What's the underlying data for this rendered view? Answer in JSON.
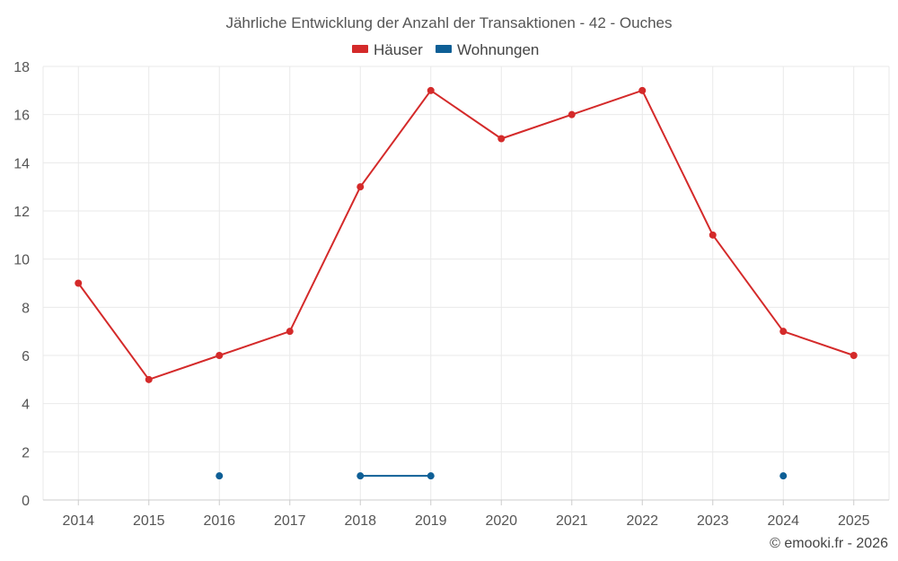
{
  "chart_data": {
    "type": "line",
    "title": "Jährliche Entwicklung der Anzahl der Transaktionen - 42 - Ouches",
    "categories": [
      "2014",
      "2015",
      "2016",
      "2017",
      "2018",
      "2019",
      "2020",
      "2021",
      "2022",
      "2023",
      "2024",
      "2025"
    ],
    "series": [
      {
        "name": "Häuser",
        "color": "#d42a2a",
        "values": [
          9,
          5,
          6,
          7,
          13,
          17,
          15,
          16,
          17,
          11,
          7,
          6
        ]
      },
      {
        "name": "Wohnungen",
        "color": "#0e5f96",
        "values": [
          null,
          null,
          1,
          null,
          1,
          1,
          null,
          null,
          null,
          null,
          1,
          null
        ]
      }
    ],
    "ylim": [
      0,
      18
    ],
    "yticks": [
      0,
      2,
      4,
      6,
      8,
      10,
      12,
      14,
      16,
      18
    ],
    "grid": true,
    "legend_position": "top-center",
    "xlabel": "",
    "ylabel": ""
  },
  "credit": "© emooki.fr - 2026"
}
